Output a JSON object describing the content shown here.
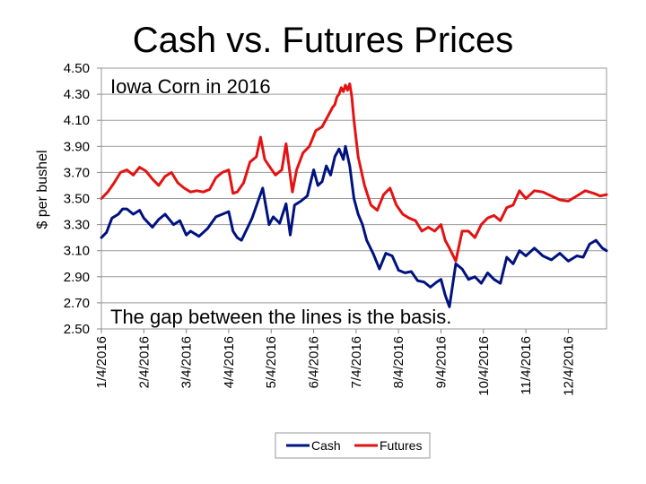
{
  "chart_data": {
    "type": "line",
    "title": "Cash vs. Futures Prices",
    "subtitle": "Iowa Corn in 2016",
    "annotation": "The gap between the lines is the basis.",
    "xlabel": "",
    "ylabel": "$ per bushel",
    "ylim": [
      2.5,
      4.5
    ],
    "yticks": [
      "2.50",
      "2.70",
      "2.90",
      "3.10",
      "3.30",
      "3.50",
      "3.70",
      "3.90",
      "4.10",
      "4.30",
      "4.50"
    ],
    "x_tick_labels": [
      "1/4/2016",
      "2/4/2016",
      "3/4/2016",
      "4/4/2016",
      "5/4/2016",
      "6/4/2016",
      "7/4/2016",
      "8/4/2016",
      "9/4/2016",
      "10/4/2016",
      "11/4/2016",
      "12/4/2016"
    ],
    "x_tick_months": [
      0,
      1,
      2,
      3,
      4,
      5,
      6,
      7,
      8,
      9,
      10,
      11
    ],
    "xlim": [
      0,
      11.9
    ],
    "grid": true,
    "legend_position": "bottom",
    "series": [
      {
        "name": "Cash",
        "color": "#00127f",
        "x": [
          0,
          0.12,
          0.25,
          0.4,
          0.5,
          0.6,
          0.75,
          0.9,
          1.0,
          1.2,
          1.35,
          1.5,
          1.7,
          1.85,
          2.0,
          2.1,
          2.3,
          2.5,
          2.7,
          2.85,
          3.0,
          3.1,
          3.2,
          3.3,
          3.45,
          3.55,
          3.7,
          3.8,
          3.95,
          4.05,
          4.2,
          4.35,
          4.45,
          4.55,
          4.7,
          4.85,
          5.0,
          5.1,
          5.2,
          5.3,
          5.4,
          5.5,
          5.6,
          5.7,
          5.75,
          5.85,
          5.95,
          6.05,
          6.15,
          6.25,
          6.4,
          6.55,
          6.7,
          6.85,
          7.0,
          7.15,
          7.3,
          7.45,
          7.6,
          7.75,
          7.9,
          8.0,
          8.1,
          8.2,
          8.35,
          8.5,
          8.65,
          8.8,
          8.95,
          9.1,
          9.25,
          9.4,
          9.55,
          9.7,
          9.85,
          10.0,
          10.2,
          10.4,
          10.6,
          10.8,
          11.0,
          11.2,
          11.35,
          11.5,
          11.65,
          11.8,
          11.9
        ],
        "values": [
          3.2,
          3.24,
          3.35,
          3.38,
          3.42,
          3.42,
          3.38,
          3.41,
          3.35,
          3.28,
          3.34,
          3.38,
          3.3,
          3.33,
          3.22,
          3.25,
          3.21,
          3.27,
          3.36,
          3.38,
          3.4,
          3.25,
          3.2,
          3.18,
          3.28,
          3.35,
          3.49,
          3.58,
          3.3,
          3.36,
          3.31,
          3.46,
          3.22,
          3.45,
          3.48,
          3.52,
          3.72,
          3.6,
          3.63,
          3.75,
          3.68,
          3.82,
          3.88,
          3.8,
          3.9,
          3.75,
          3.5,
          3.38,
          3.3,
          3.18,
          3.08,
          2.96,
          3.08,
          3.06,
          2.95,
          2.93,
          2.94,
          2.87,
          2.86,
          2.82,
          2.86,
          2.88,
          2.76,
          2.67,
          3.0,
          2.96,
          2.88,
          2.9,
          2.85,
          2.93,
          2.88,
          2.85,
          3.05,
          3.0,
          3.1,
          3.06,
          3.12,
          3.06,
          3.03,
          3.08,
          3.02,
          3.06,
          3.05,
          3.15,
          3.18,
          3.12,
          3.1
        ]
      },
      {
        "name": "Futures",
        "color": "#e41212",
        "x": [
          0,
          0.15,
          0.3,
          0.45,
          0.6,
          0.75,
          0.9,
          1.05,
          1.2,
          1.35,
          1.5,
          1.65,
          1.8,
          1.95,
          2.1,
          2.25,
          2.4,
          2.55,
          2.7,
          2.85,
          3.0,
          3.1,
          3.2,
          3.35,
          3.5,
          3.65,
          3.75,
          3.85,
          3.95,
          4.1,
          4.25,
          4.35,
          4.5,
          4.6,
          4.75,
          4.9,
          5.05,
          5.2,
          5.35,
          5.45,
          5.5,
          5.55,
          5.6,
          5.65,
          5.7,
          5.75,
          5.8,
          5.85,
          5.9,
          5.95,
          6.05,
          6.2,
          6.35,
          6.5,
          6.65,
          6.8,
          6.95,
          7.1,
          7.25,
          7.4,
          7.55,
          7.7,
          7.85,
          8.0,
          8.1,
          8.2,
          8.35,
          8.5,
          8.65,
          8.8,
          8.95,
          9.1,
          9.25,
          9.4,
          9.55,
          9.7,
          9.85,
          10.0,
          10.2,
          10.4,
          10.6,
          10.8,
          11.0,
          11.2,
          11.4,
          11.6,
          11.75,
          11.9
        ],
        "values": [
          3.5,
          3.55,
          3.62,
          3.7,
          3.72,
          3.68,
          3.74,
          3.71,
          3.65,
          3.6,
          3.67,
          3.7,
          3.62,
          3.58,
          3.55,
          3.56,
          3.55,
          3.57,
          3.66,
          3.7,
          3.72,
          3.54,
          3.55,
          3.62,
          3.78,
          3.82,
          3.97,
          3.8,
          3.75,
          3.68,
          3.72,
          3.92,
          3.55,
          3.72,
          3.85,
          3.9,
          4.02,
          4.05,
          4.14,
          4.2,
          4.22,
          4.28,
          4.3,
          4.35,
          4.32,
          4.37,
          4.33,
          4.38,
          4.28,
          4.1,
          3.82,
          3.6,
          3.45,
          3.41,
          3.53,
          3.58,
          3.45,
          3.38,
          3.35,
          3.33,
          3.25,
          3.28,
          3.25,
          3.3,
          3.18,
          3.12,
          3.02,
          3.25,
          3.25,
          3.2,
          3.3,
          3.35,
          3.37,
          3.33,
          3.43,
          3.45,
          3.56,
          3.5,
          3.56,
          3.55,
          3.52,
          3.49,
          3.48,
          3.52,
          3.56,
          3.54,
          3.52,
          3.53
        ]
      }
    ]
  }
}
